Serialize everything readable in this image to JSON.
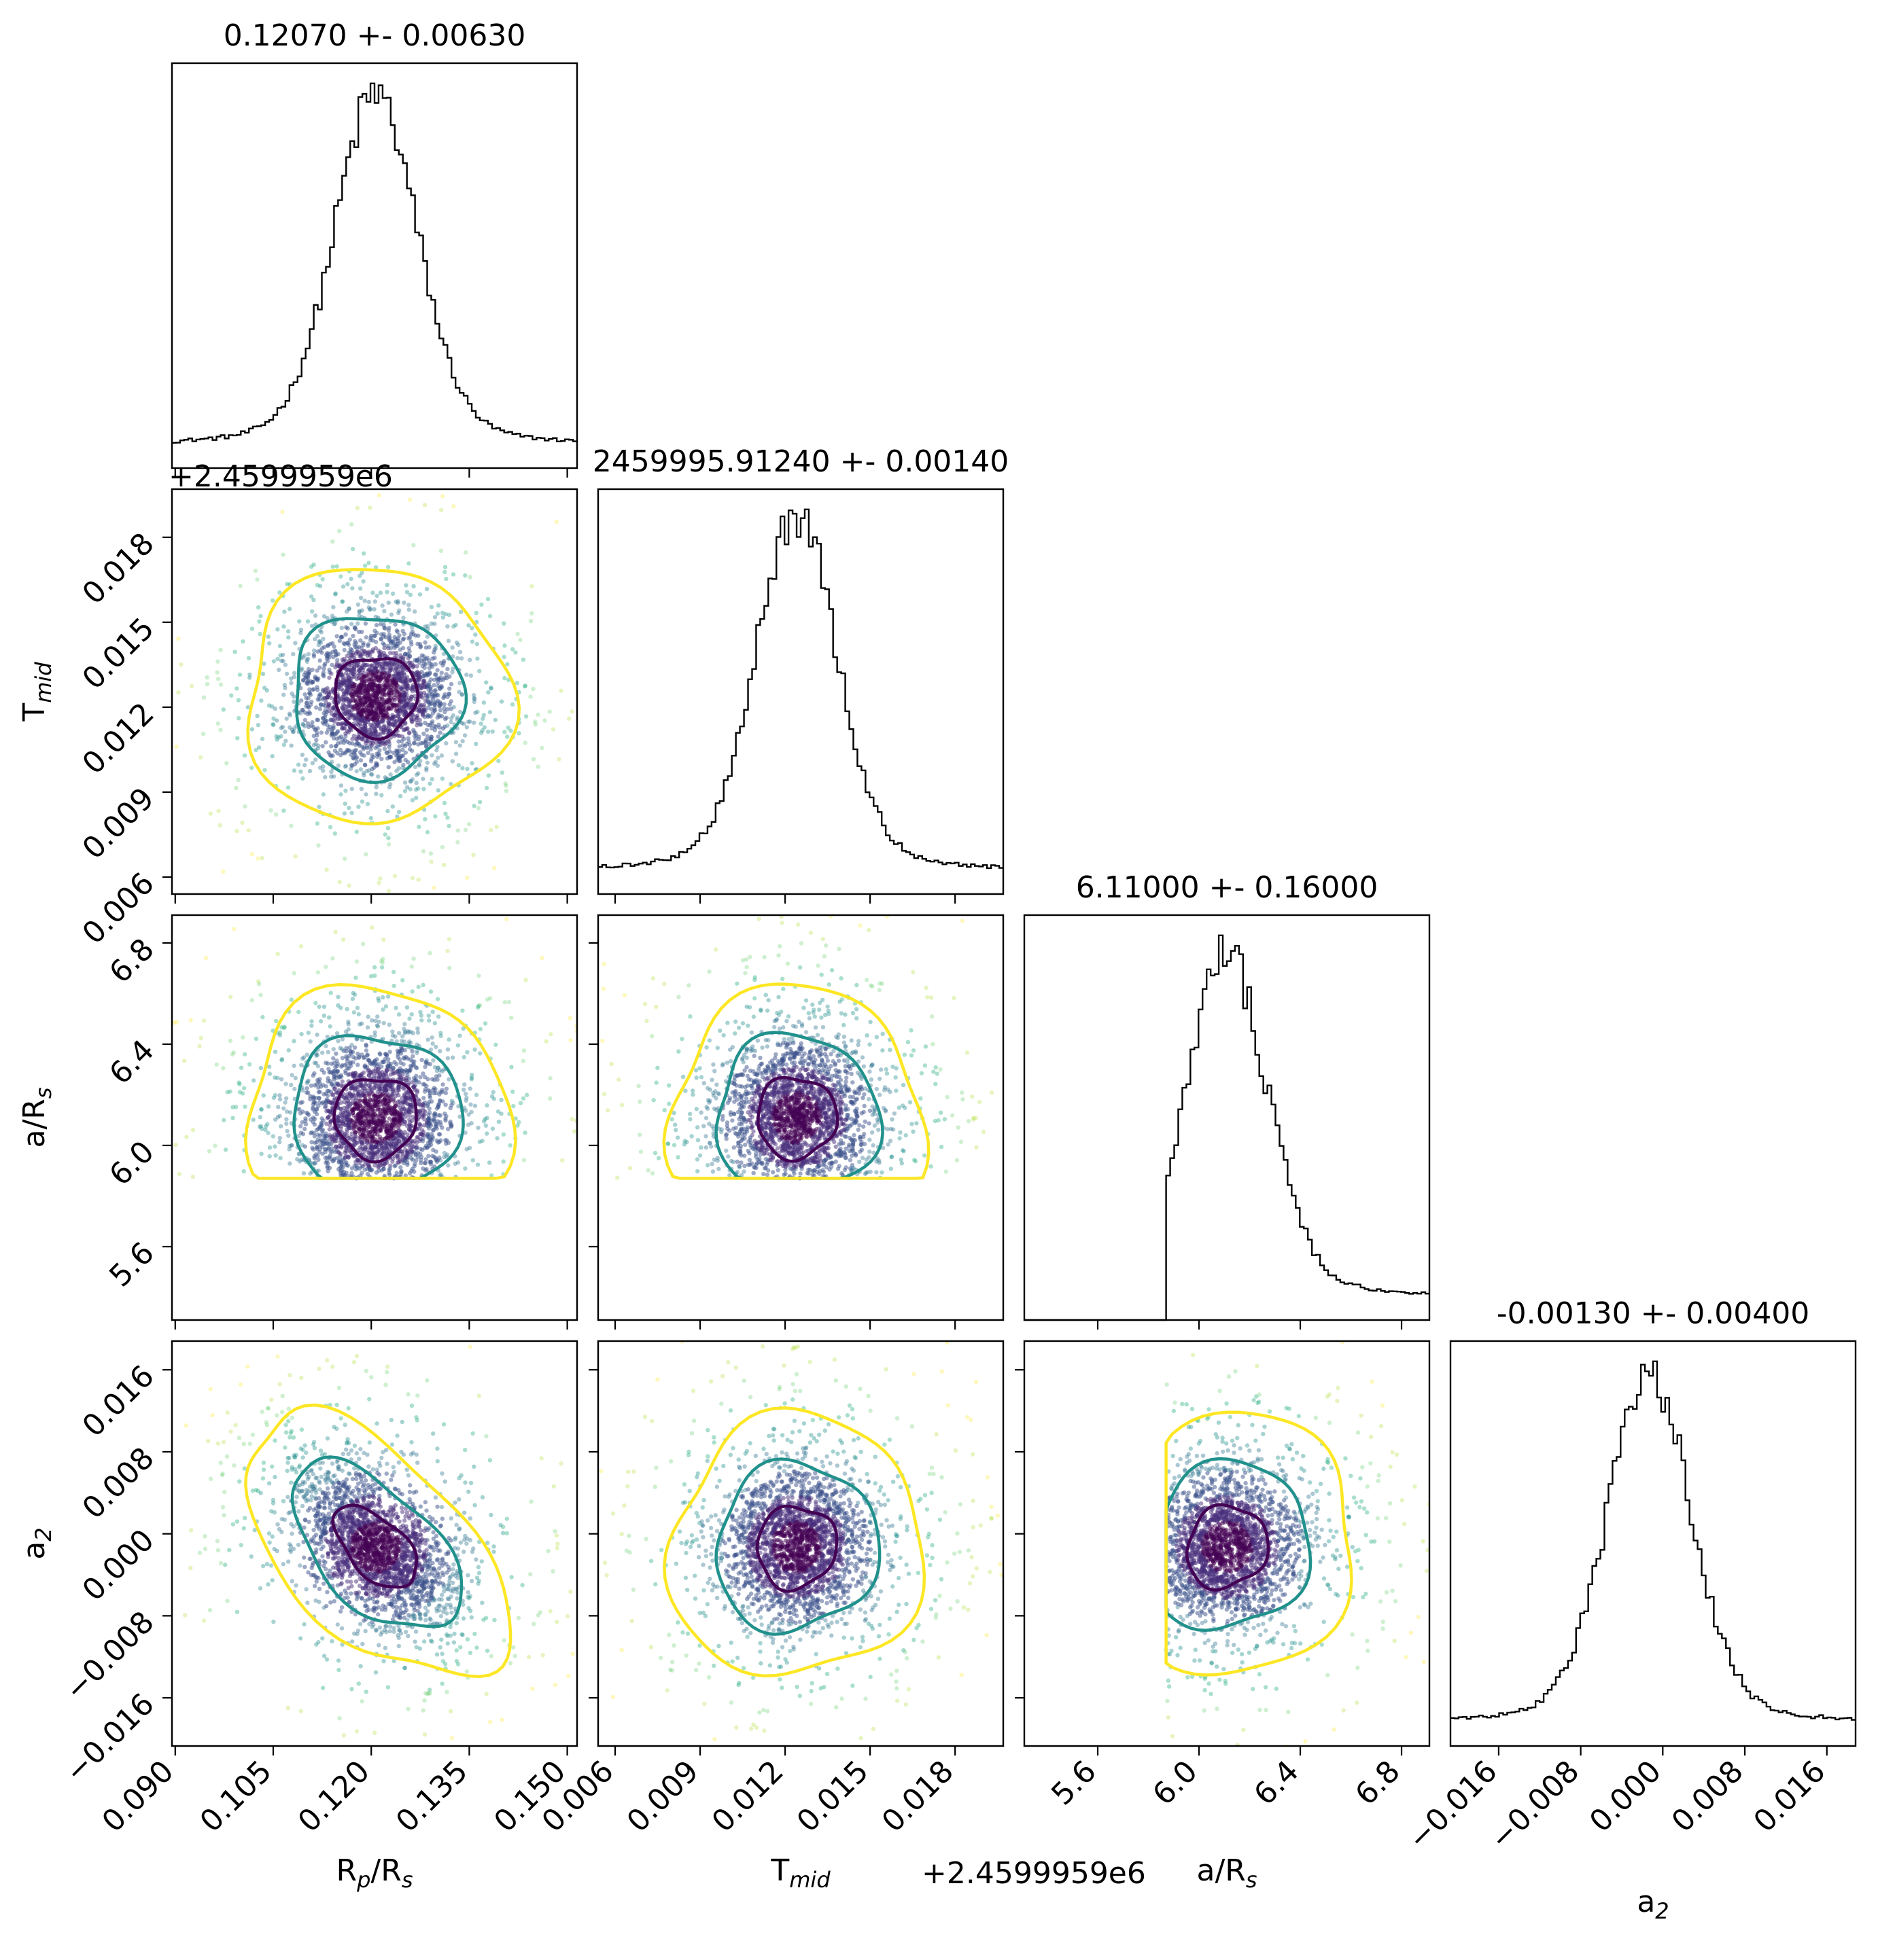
{
  "chart_data": {
    "type": "scatter",
    "subtype": "corner-plot",
    "parameters": [
      {
        "key": "rprs",
        "label_main": "R",
        "label_sub1": "p",
        "label_mid": "/R",
        "label_sub2": "s",
        "title": "0.12070 +- 0.00630",
        "range": [
          0.0895,
          0.1515
        ],
        "ticks": [
          "0.090",
          "0.105",
          "0.120",
          "0.135",
          "0.150"
        ],
        "tick_values": [
          0.09,
          0.105,
          0.12,
          0.135,
          0.15
        ],
        "center": 0.1207,
        "spread": 0.0063
      },
      {
        "key": "tmid",
        "label_main": "T",
        "label_sub1": "mid",
        "label_mid": "",
        "label_sub2": "",
        "title": "2459995.91240 +- 0.00140",
        "offset": "+2.4599959e6",
        "range": [
          0.0054,
          0.0197
        ],
        "ticks": [
          "0.006",
          "0.009",
          "0.012",
          "0.015",
          "0.018"
        ],
        "tick_values": [
          0.006,
          0.009,
          0.012,
          0.015,
          0.018
        ],
        "center": 0.0124,
        "spread": 0.0014
      },
      {
        "key": "ars",
        "label_main": "a/R",
        "label_sub1": "s",
        "label_mid": "",
        "label_sub2": "",
        "title": "6.11000 +- 0.16000",
        "range": [
          5.31,
          6.91
        ],
        "ticks": [
          "5.6",
          "6.0",
          "6.4",
          "6.8"
        ],
        "tick_values": [
          5.6,
          6.0,
          6.4,
          6.8
        ],
        "center": 6.11,
        "spread": 0.16,
        "lower_bound": 5.87
      },
      {
        "key": "a2",
        "label_main": "a",
        "label_sub1": "2",
        "label_mid": "",
        "label_sub2": "",
        "title": "-0.00130 +- 0.00400",
        "range": [
          -0.0207,
          0.0188
        ],
        "ticks": [
          "−0.016",
          "−0.008",
          "0.000",
          "0.008",
          "0.016"
        ],
        "tick_values": [
          -0.016,
          -0.008,
          0.0,
          0.008,
          0.016
        ],
        "center": -0.0013,
        "spread": 0.004
      }
    ],
    "correlations": {
      "0-3": -0.55,
      "0-1": 0.0,
      "0-2": 0.0,
      "1-2": 0.0,
      "1-3": 0.05,
      "2-3": 0.1
    },
    "contour_colors": [
      "#440154",
      "#21918c",
      "#fde725"
    ],
    "point_colormap": "viridis",
    "histogram_color": "#000000",
    "grid": false
  }
}
